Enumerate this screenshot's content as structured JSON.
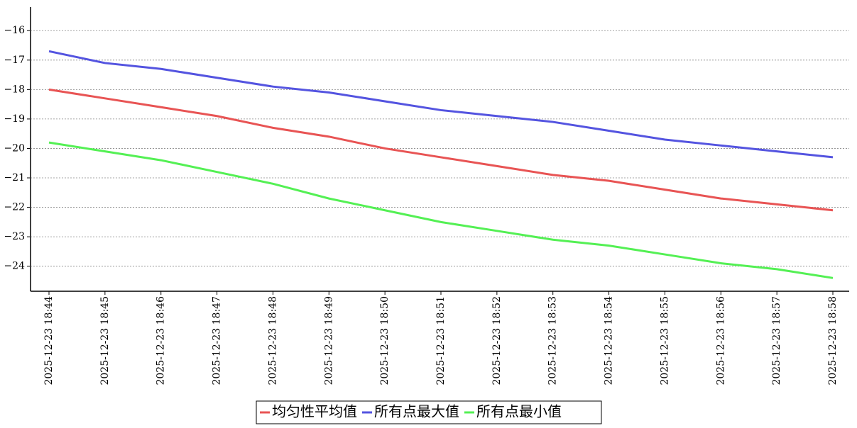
{
  "chart_data": {
    "type": "line",
    "categories": [
      "2025-12-23 18:44",
      "2025-12-23 18:45",
      "2025-12-23 18:46",
      "2025-12-23 18:47",
      "2025-12-23 18:48",
      "2025-12-23 18:49",
      "2025-12-23 18:50",
      "2025-12-23 18:51",
      "2025-12-23 18:52",
      "2025-12-23 18:53",
      "2025-12-23 18:54",
      "2025-12-23 18:55",
      "2025-12-23 18:56",
      "2025-12-23 18:57",
      "2025-12-23 18:58"
    ],
    "series": [
      {
        "name": "均匀性平均值",
        "color": "#e85454",
        "values": [
          -18.0,
          -18.3,
          -18.6,
          -18.9,
          -19.3,
          -19.6,
          -20.0,
          -20.3,
          -20.6,
          -20.9,
          -21.1,
          -21.4,
          -21.7,
          -21.9,
          -22.1
        ]
      },
      {
        "name": "所有点最大值",
        "color": "#5454e0",
        "values": [
          -16.7,
          -17.1,
          -17.3,
          -17.6,
          -17.9,
          -18.1,
          -18.4,
          -18.7,
          -18.9,
          -19.1,
          -19.4,
          -19.7,
          -19.9,
          -20.1,
          -20.3
        ]
      },
      {
        "name": "所有点最小值",
        "color": "#54f054",
        "values": [
          -19.8,
          -20.1,
          -20.4,
          -20.8,
          -21.2,
          -21.7,
          -22.1,
          -22.5,
          -22.8,
          -23.1,
          -23.3,
          -23.6,
          -23.9,
          -24.1,
          -24.4
        ]
      }
    ],
    "ylim": [
      -24.85,
      -15.2
    ],
    "yticks": [
      {
        "value": -16,
        "label": "−16"
      },
      {
        "value": -17,
        "label": "−17"
      },
      {
        "value": -18,
        "label": "−18"
      },
      {
        "value": -19,
        "label": "−19"
      },
      {
        "value": -20,
        "label": "−20"
      },
      {
        "value": -21,
        "label": "−21"
      },
      {
        "value": -22,
        "label": "−22"
      },
      {
        "value": -23,
        "label": "−23"
      },
      {
        "value": -24,
        "label": "−24"
      }
    ],
    "grid": true,
    "legend": "bottom"
  }
}
